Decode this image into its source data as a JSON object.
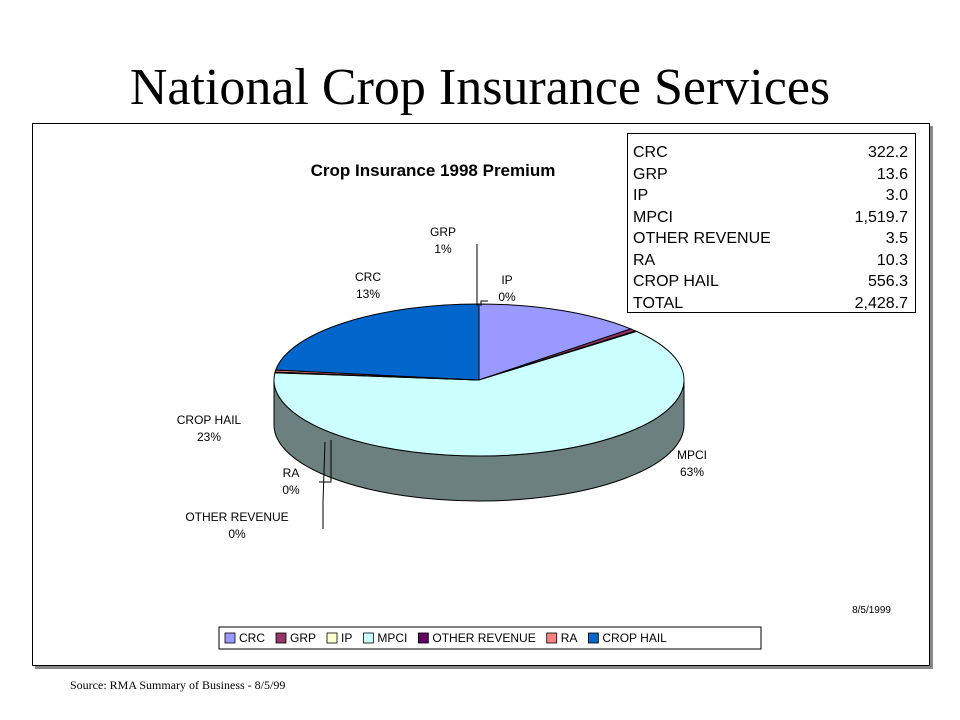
{
  "slide_title": "National Crop Insurance Services",
  "source_note": "Source: RMA Summary of Business - 8/5/99",
  "date_stamp": "8/5/1999",
  "chart_data": {
    "type": "pie",
    "title": "Crop Insurance 1998 Premium",
    "slices": [
      {
        "name": "CRC",
        "value": 322.2,
        "pct_label": "13%",
        "color": "#9999ff",
        "side": "#5d5d99"
      },
      {
        "name": "GRP",
        "value": 13.6,
        "pct_label": "1%",
        "color": "#993366",
        "side": "#5c1f3d"
      },
      {
        "name": "IP",
        "value": 3.0,
        "pct_label": "0%",
        "color": "#ffffcc",
        "side": "#99997a"
      },
      {
        "name": "MPCI",
        "value": 1519.7,
        "pct_label": "63%",
        "color": "#ccffff",
        "side": "#6b807f"
      },
      {
        "name": "OTHER REVENUE",
        "value": 3.5,
        "pct_label": "0%",
        "color": "#660066",
        "side": "#3d003d"
      },
      {
        "name": "RA",
        "value": 10.3,
        "pct_label": "0%",
        "color": "#ff8080",
        "side": "#994d4d"
      },
      {
        "name": "CROP HAIL",
        "value": 556.3,
        "pct_label": "23%",
        "color": "#0066cc",
        "side": "#003366"
      }
    ],
    "legend_position": "bottom",
    "table": {
      "rows": [
        {
          "name": "CRC",
          "value": "322.2"
        },
        {
          "name": "GRP",
          "value": "13.6"
        },
        {
          "name": "IP",
          "value": "3.0"
        },
        {
          "name": "MPCI",
          "value": "1,519.7"
        },
        {
          "name": "OTHER REVENUE",
          "value": "3.5"
        },
        {
          "name": "RA",
          "value": "10.3"
        },
        {
          "name": "CROP HAIL",
          "value": "556.3"
        },
        {
          "name": "TOTAL",
          "value": "2,428.7"
        }
      ]
    }
  }
}
